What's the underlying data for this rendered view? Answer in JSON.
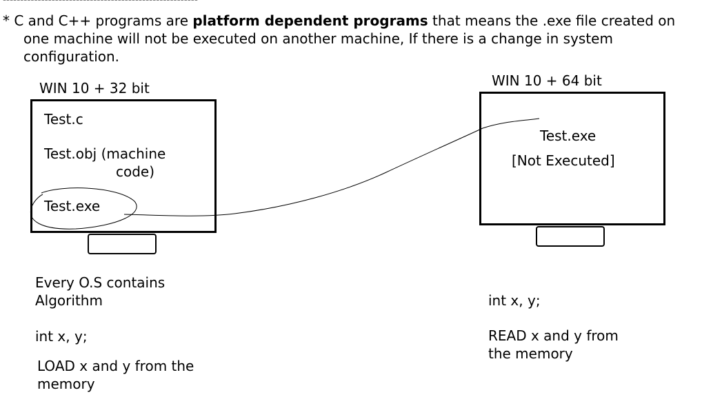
{
  "divider_text": "--------------------------------------------------------",
  "intro": {
    "prefix": "* C and C++ programs are ",
    "bold": "platform dependent programs",
    "line1_rest": " that means the .exe file created on",
    "line2": "one machine will not be executed on another machine, If there is a change in system",
    "line3": "configuration."
  },
  "left_machine": {
    "label": "WIN 10 + 32 bit",
    "file1": "Test.c",
    "file2_line1": "Test.obj (machine",
    "file2_line2": "code)",
    "file3": "Test.exe"
  },
  "right_machine": {
    "label": "WIN 10 + 64 bit",
    "file": "Test.exe",
    "status": "[Not Executed]"
  },
  "left_notes": {
    "line1": "Every O.S contains",
    "line2": "Algorithm",
    "code": "int x, y;",
    "load_line1": "LOAD x and y from the",
    "load_line2": "memory"
  },
  "right_notes": {
    "code": "int x, y;",
    "read_line1": "READ x and y from",
    "read_line2": "the memory"
  }
}
